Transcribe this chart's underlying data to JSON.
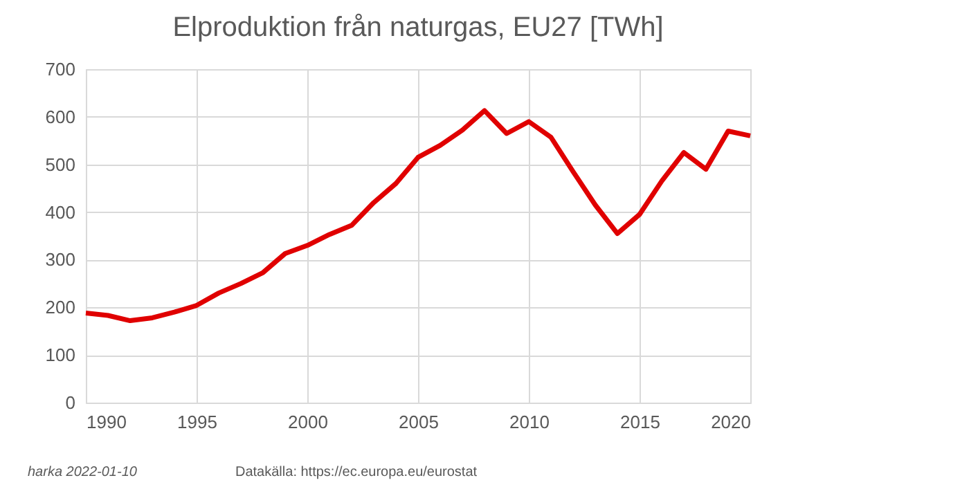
{
  "chart_data": {
    "type": "line",
    "title": "Elproduktion från naturgas, EU27 [TWh]",
    "x": [
      1990,
      1991,
      1992,
      1993,
      1994,
      1995,
      1996,
      1997,
      1998,
      1999,
      2000,
      2001,
      2002,
      2003,
      2004,
      2005,
      2006,
      2007,
      2008,
      2009,
      2010,
      2011,
      2012,
      2013,
      2014,
      2015,
      2016,
      2017,
      2018,
      2019,
      2020
    ],
    "series": [
      {
        "color": "#e00000",
        "values": [
          188,
          183,
          172,
          178,
          190,
          204,
          230,
          250,
          273,
          313,
          330,
          353,
          372,
          420,
          460,
          515,
          540,
          572,
          613,
          565,
          590,
          557,
          485,
          415,
          355,
          395,
          465,
          525,
          490,
          570,
          560
        ]
      }
    ],
    "xlim": [
      1990,
      2020
    ],
    "xticks": [
      1990,
      1995,
      2000,
      2005,
      2010,
      2015,
      2020
    ],
    "ylim": [
      0,
      700
    ],
    "yticks": [
      0,
      100,
      200,
      300,
      400,
      500,
      600,
      700
    ],
    "grid": true,
    "legend": false,
    "marker": "none",
    "line_style": "solid",
    "annotations": [
      "harka 2022-01-10",
      "Datakälla: https://ec.europa.eu/eurostat"
    ]
  }
}
